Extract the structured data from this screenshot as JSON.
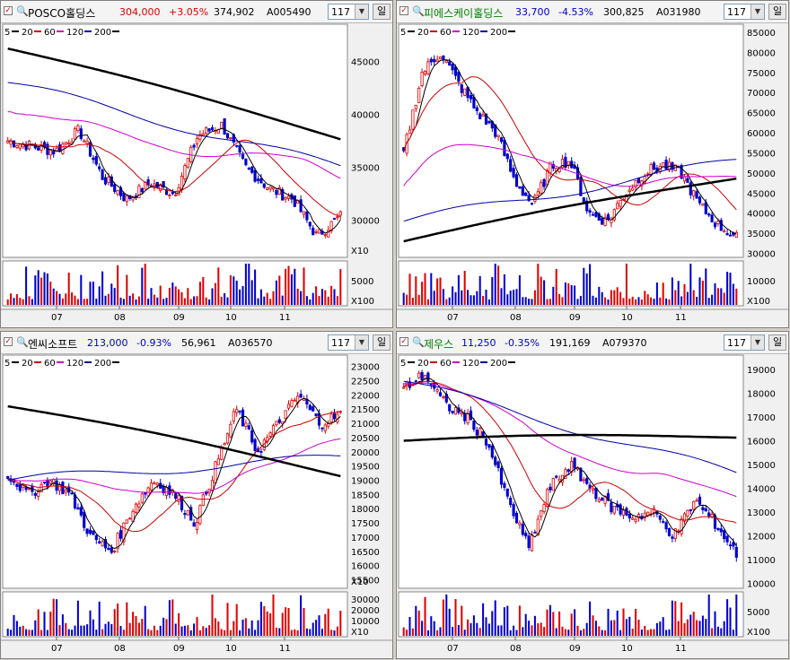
{
  "panels": [
    {
      "name": "POSCO홀딩스",
      "name_color": "#000000",
      "price": "304,000",
      "change": "+3.05%",
      "volume": "374,902",
      "code": "A005490",
      "period": "117",
      "unit": "일",
      "change_color": "#e00000",
      "legend": [
        "5",
        "20",
        "60",
        "120",
        "200"
      ],
      "price_axis": [
        "45000",
        "40000",
        "35000",
        "30000"
      ],
      "vol_axis": [
        "5000"
      ],
      "price_mult": "X10",
      "vol_mult": "X100",
      "months": [
        "07",
        "08",
        "09",
        "10",
        "11"
      ],
      "chart_data": {
        "type": "candlestick",
        "ylim": [
          26500,
          48500
        ],
        "close_approx": [
          37500,
          37000,
          36500,
          38500,
          34000,
          32000,
          33500,
          32500,
          38000,
          39000,
          35000,
          33000,
          32000,
          28500,
          30400
        ],
        "ma200_start": 46200,
        "ma200_end": 37800,
        "ma120_start": 43000,
        "ma120_end": 35000
      }
    },
    {
      "name": "피에스케이홀딩스",
      "name_color": "#008000",
      "price": "33,700",
      "change": "-4.53%",
      "volume": "300,825",
      "code": "A031980",
      "period": "117",
      "unit": "일",
      "change_color": "#0000cc",
      "legend": [
        "5",
        "20",
        "60",
        "120",
        "200"
      ],
      "price_axis": [
        "85000",
        "80000",
        "75000",
        "70000",
        "65000",
        "60000",
        "55000",
        "50000",
        "45000",
        "40000",
        "35000",
        "30000"
      ],
      "vol_axis": [
        "10000"
      ],
      "price_mult": "",
      "vol_mult": "X100",
      "months": [
        "07",
        "08",
        "09",
        "10",
        "11"
      ],
      "chart_data": {
        "type": "candlestick",
        "ylim": [
          29000,
          87000
        ],
        "close_approx": [
          55000,
          75000,
          80000,
          72000,
          65000,
          60000,
          48000,
          42000,
          52000,
          53000,
          40000,
          38000,
          45000,
          50000,
          52000,
          50000,
          42000,
          37000,
          34000
        ],
        "ma200_start": 33000,
        "ma200_end": 49000,
        "ma120_start": 38000,
        "ma120_end": 53000
      }
    },
    {
      "name": "엔씨소프트",
      "name_color": "#000000",
      "price": "213,000",
      "change": "-0.93%",
      "volume": "56,961",
      "code": "A036570",
      "period": "117",
      "unit": "일",
      "change_color": "#0000cc",
      "legend": [
        "5",
        "20",
        "60",
        "120",
        "200"
      ],
      "price_axis": [
        "23000",
        "22500",
        "22000",
        "21500",
        "21000",
        "20500",
        "20000",
        "19500",
        "19000",
        "18500",
        "18000",
        "17500",
        "17000",
        "16500",
        "16000",
        "15500"
      ],
      "vol_axis": [
        "30000",
        "20000",
        "10000"
      ],
      "price_mult": "X10",
      "vol_mult": "X10",
      "months": [
        "07",
        "08",
        "09",
        "10",
        "11"
      ],
      "chart_data": {
        "type": "candlestick",
        "ylim": [
          15200,
          23400
        ],
        "close_approx": [
          19200,
          18500,
          19000,
          18500,
          17000,
          16500,
          18000,
          19000,
          18500,
          17500,
          19500,
          21500,
          20000,
          21000,
          22000,
          21000,
          21300
        ],
        "ma200_start": 21600,
        "ma200_end": 19200,
        "ma120_start": 19000,
        "ma120_end": 19800
      }
    },
    {
      "name": "제우스",
      "name_color": "#008000",
      "price": "11,250",
      "change": "-0.35%",
      "volume": "191,169",
      "code": "A079370",
      "period": "117",
      "unit": "일",
      "change_color": "#0000cc",
      "legend": [
        "5",
        "20",
        "60",
        "120",
        "200"
      ],
      "price_axis": [
        "19000",
        "18000",
        "17000",
        "16000",
        "15000",
        "14000",
        "13000",
        "12000",
        "11000",
        "10000"
      ],
      "vol_axis": [
        "5000"
      ],
      "price_mult": "",
      "vol_mult": "X100",
      "months": [
        "07",
        "08",
        "09",
        "10",
        "11"
      ],
      "chart_data": {
        "type": "candlestick",
        "ylim": [
          9800,
          19600
        ],
        "close_approx": [
          18200,
          18800,
          17500,
          17000,
          16000,
          13500,
          11500,
          14000,
          15000,
          14000,
          13200,
          12800,
          13000,
          12000,
          13500,
          12500,
          11250
        ],
        "ma200_start": 16000,
        "ma200_end": 16200,
        "ma120_start": 18500,
        "ma120_end": 14600
      }
    }
  ],
  "colors": {
    "up": "#e00000",
    "down": "#0000cc",
    "ma5": "#000000",
    "ma20": "#cc0000",
    "ma60": "#cc00cc",
    "ma120": "#0000aa",
    "ma200": "#000000"
  }
}
